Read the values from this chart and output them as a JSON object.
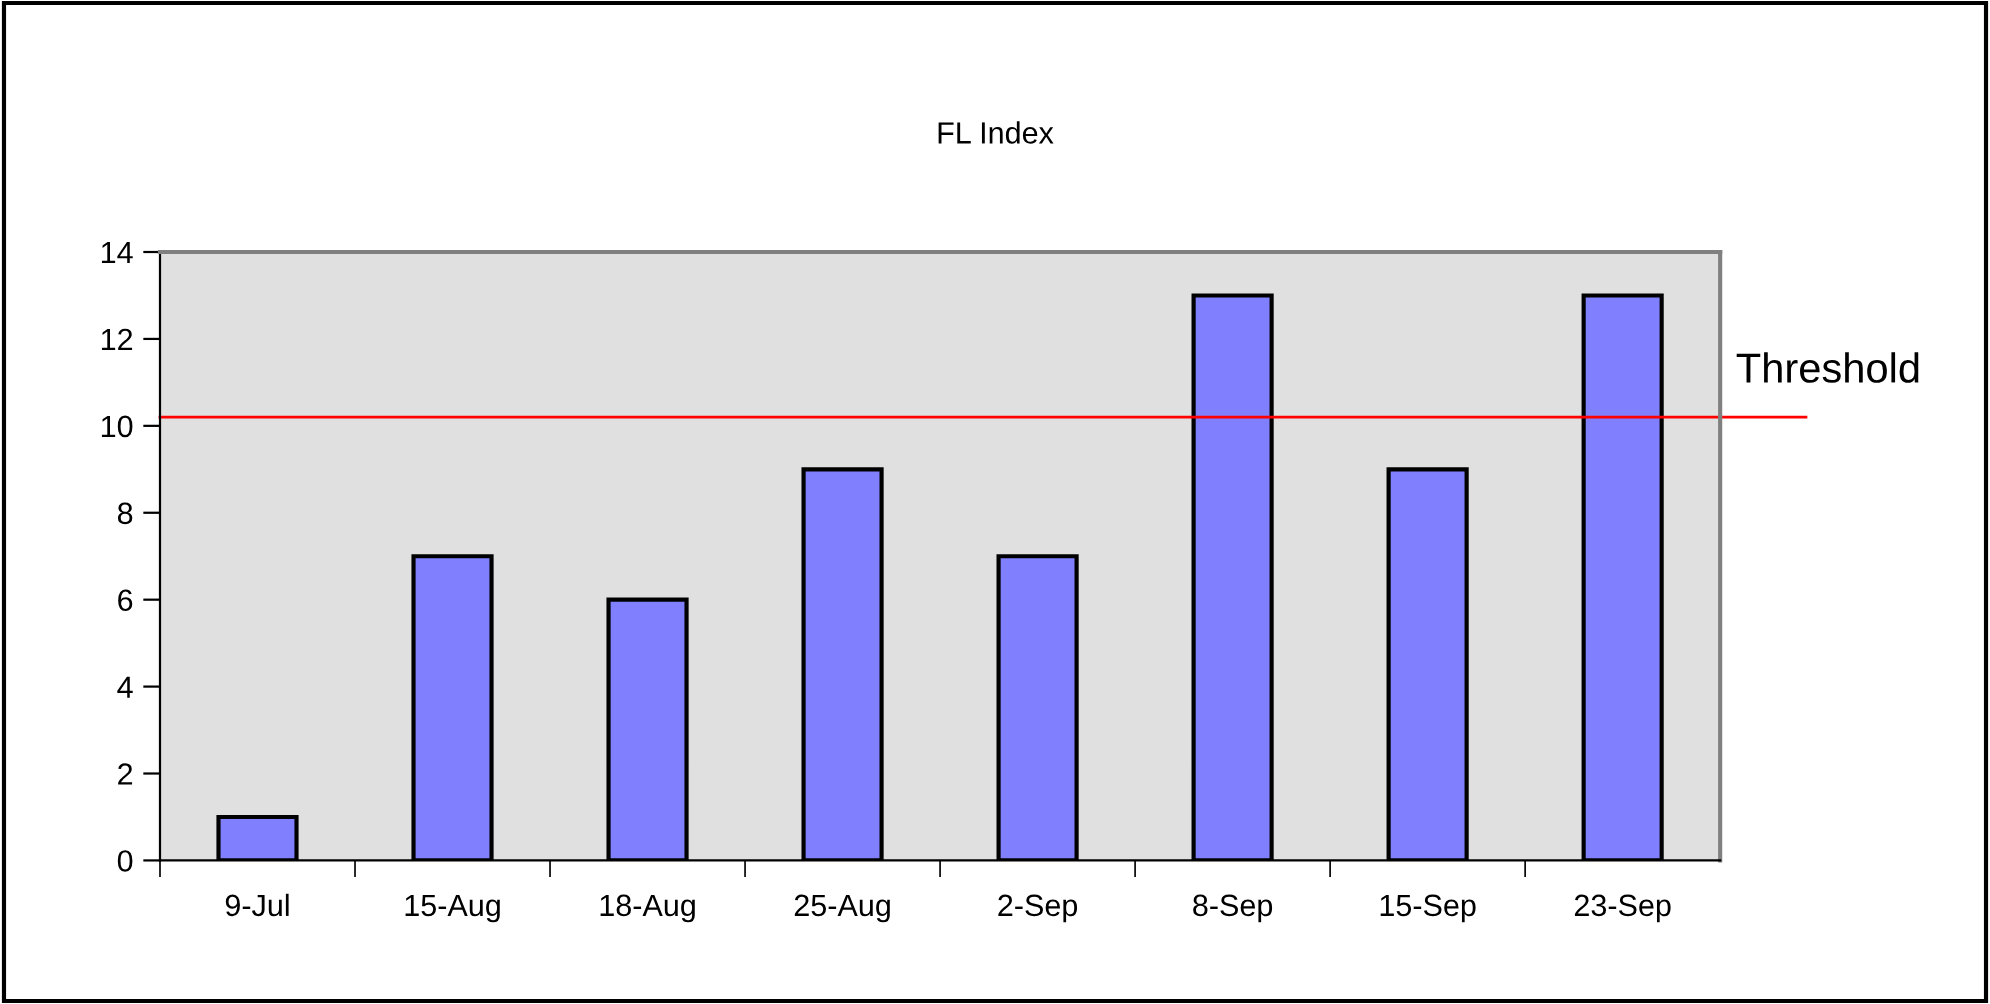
{
  "chart_data": {
    "type": "bar",
    "title": "FL Index",
    "categories": [
      "9-Jul",
      "15-Aug",
      "18-Aug",
      "25-Aug",
      "2-Sep",
      "8-Sep",
      "15-Sep",
      "23-Sep"
    ],
    "values": [
      1,
      7,
      6,
      9,
      7,
      13,
      9,
      13
    ],
    "color": "#8080ff",
    "ylim": [
      0,
      14
    ],
    "yticks": [
      0,
      2,
      4,
      6,
      8,
      10,
      12,
      14
    ],
    "grid": false,
    "legend": false,
    "ref_lines": [
      {
        "axis": "y",
        "value": 10.2,
        "label": "Threshold",
        "color": "#ff0000",
        "line_style": "solid"
      }
    ]
  }
}
